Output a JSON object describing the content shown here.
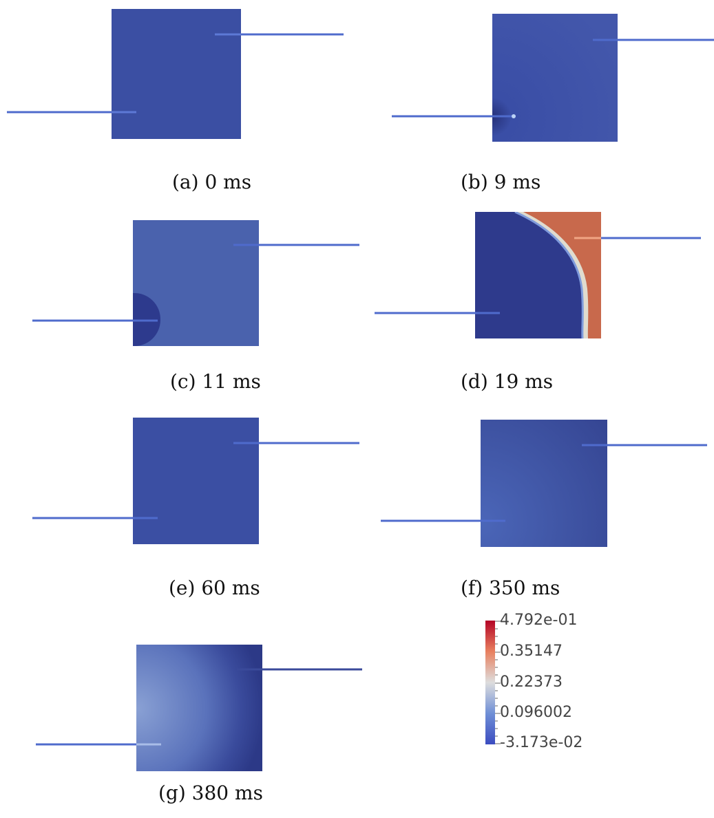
{
  "colors": {
    "base_blue": "#3b4fa3",
    "dark_blue": "#2e3a8c",
    "light_blue": "#7f97d0",
    "orange": "#c2694d",
    "rod_blue": "#4f6bcc"
  },
  "panels": [
    {
      "caption": "(a) 0 ms"
    },
    {
      "caption": "(b) 9 ms"
    },
    {
      "caption": "(c) 11 ms"
    },
    {
      "caption": "(d) 19 ms"
    },
    {
      "caption": "(e) 60 ms"
    },
    {
      "caption": "(f) 350 ms"
    },
    {
      "caption": "(g) 380 ms"
    }
  ],
  "colorbar": {
    "ticks": [
      "4.792e-01",
      "0.35147",
      "0.22373",
      "0.096002",
      "-3.173e-02"
    ],
    "colors": [
      "#b40426",
      "#e8805f",
      "#dddddd",
      "#6f8fd6",
      "#3b4cc0"
    ]
  }
}
